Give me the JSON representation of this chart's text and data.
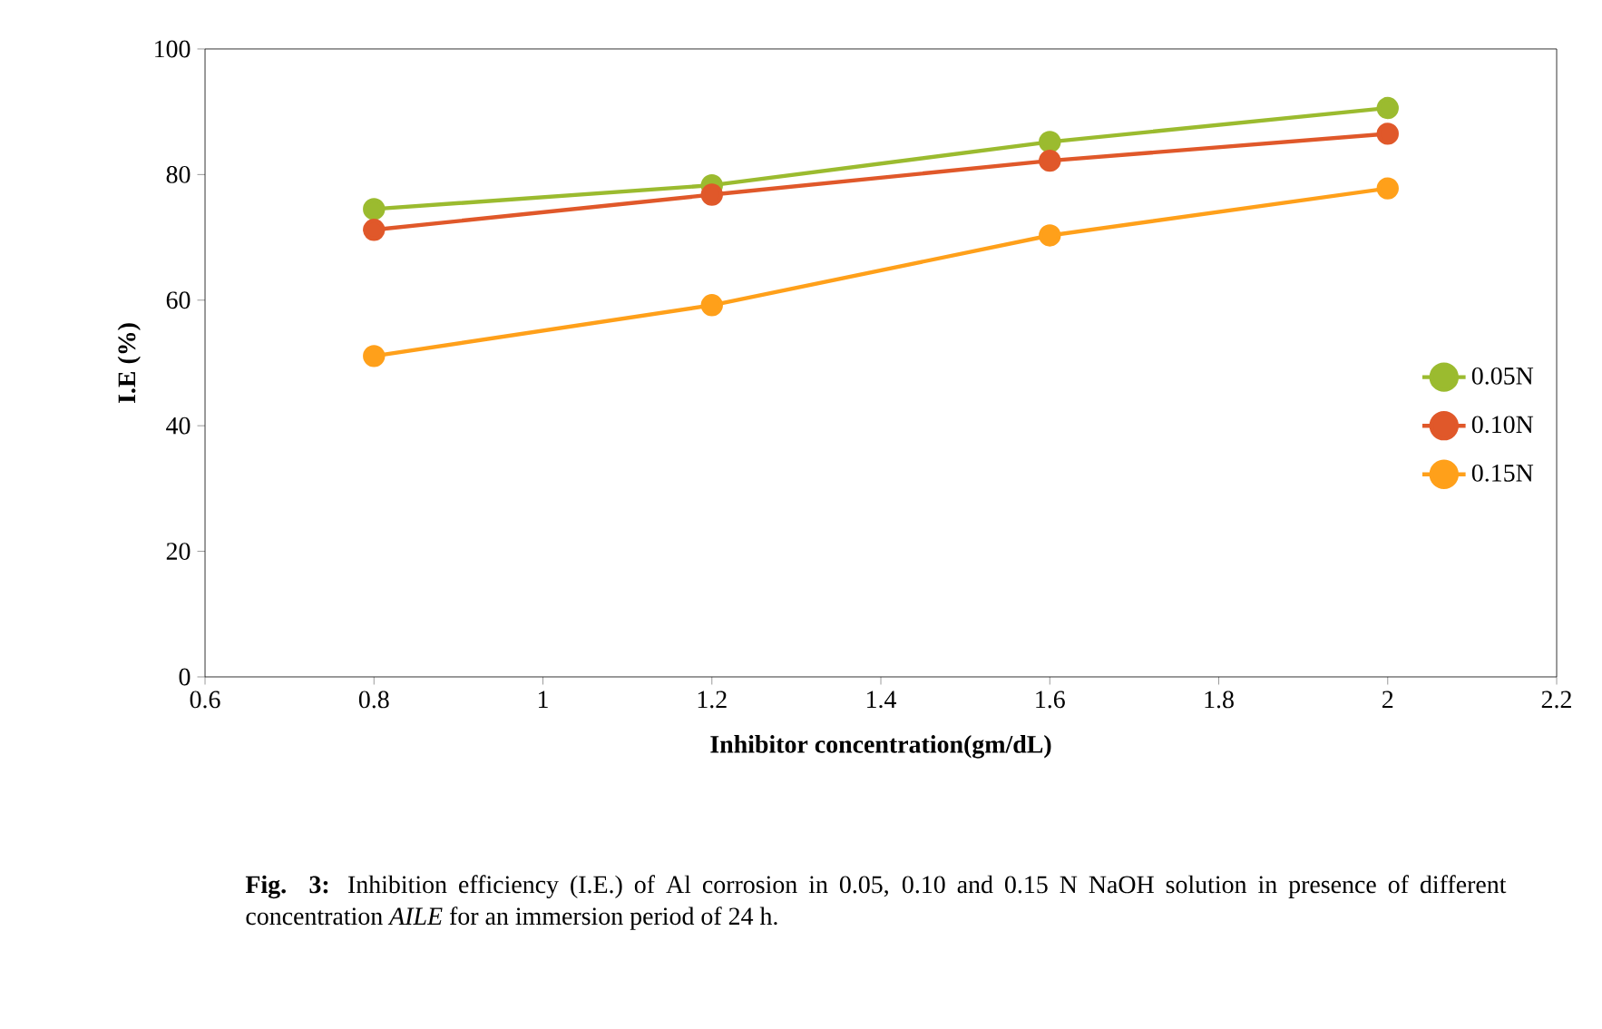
{
  "chart_data": {
    "type": "line",
    "xlabel": "Inhibitor concentration(gm/dL)",
    "ylabel": "I.E (%)",
    "x": [
      0.8,
      1.2,
      1.6,
      2
    ],
    "series": [
      {
        "name": "0.05N",
        "color": "#9bbb2f",
        "values": [
          74.5,
          78.3,
          85.2,
          90.6
        ]
      },
      {
        "name": "0.10N",
        "color": "#e0582a",
        "values": [
          71.2,
          76.8,
          82.2,
          86.5
        ]
      },
      {
        "name": "0.15N",
        "color": "#ffa01a",
        "values": [
          51.1,
          59.2,
          70.3,
          77.8
        ]
      }
    ],
    "xlim": [
      0.6,
      2.2
    ],
    "xticks": [
      0.6,
      0.8,
      1,
      1.2,
      1.4,
      1.6,
      1.8,
      2,
      2.2
    ],
    "ylim": [
      0,
      100
    ],
    "yticks": [
      0,
      20,
      40,
      60,
      80,
      100
    ],
    "grid": false,
    "legend": "right",
    "marker": "circle",
    "line_style": "solid",
    "annotations": [
      "**Fig. 3:** Inhibition efficiency (I.E.) of Al corrosion in 0.05, 0.10 and 0.15 N NaOH solution in presence of different concentration *AILE* for an immersion period of 24 h."
    ]
  }
}
